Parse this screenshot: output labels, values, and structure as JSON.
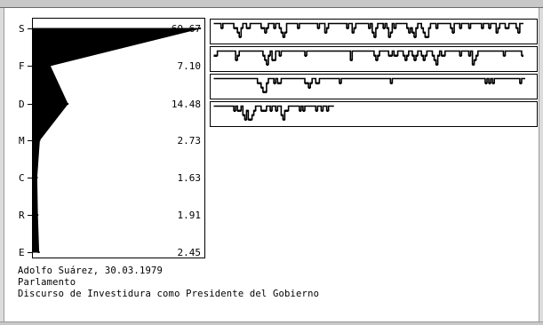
{
  "caption": {
    "speaker_date": "Adolfo Suárez, 30.03.1979",
    "venue": "Parlamento",
    "title": "Discurso de Investidura como Presidente del Gobierno"
  },
  "colors": {
    "profile_fill": "#000000",
    "frame": "#000000",
    "background": "#ffffff",
    "window_chrome": "#c8c8c8"
  },
  "chart_data": [
    {
      "type": "area",
      "orientation": "horizontal",
      "categories": [
        "S",
        "F",
        "D",
        "M",
        "C",
        "R",
        "E"
      ],
      "values": [
        69.67,
        7.1,
        14.48,
        2.73,
        1.63,
        1.91,
        2.45
      ],
      "value_labels": [
        "69.67",
        "7.10",
        "14.48",
        "2.73",
        "1.63",
        "1.91",
        "2.45"
      ],
      "xlim": [
        0,
        70
      ],
      "grid": false
    },
    {
      "type": "line",
      "description_of_tracks": "step sequence tracks",
      "tracks": [
        {
          "levels": [
            3,
            3,
            3,
            3,
            2,
            3,
            3,
            3,
            3,
            3,
            3,
            2,
            2,
            1,
            0,
            2,
            3,
            3,
            2,
            2,
            3,
            3,
            3,
            3,
            3,
            3,
            2,
            2,
            1,
            2,
            3,
            3,
            3,
            2,
            3,
            3,
            2,
            1,
            0,
            1,
            3,
            3,
            3,
            3,
            3,
            3,
            2,
            3,
            3,
            3,
            3,
            3,
            3,
            3,
            3,
            3,
            3,
            2,
            3,
            3,
            3,
            1,
            2,
            3,
            3,
            3,
            3,
            3,
            3,
            3,
            3,
            3,
            3,
            2,
            3,
            3,
            1,
            2,
            3,
            3,
            3,
            3,
            3,
            3,
            3,
            2,
            3,
            1,
            0,
            2,
            3,
            3,
            3,
            2,
            3,
            2,
            0,
            1,
            3,
            2,
            3,
            3,
            3,
            3,
            3,
            3,
            2,
            1,
            2,
            1,
            0,
            2,
            3,
            3,
            2,
            1,
            0,
            0,
            2,
            3,
            3,
            3,
            2,
            3,
            3,
            3,
            3,
            3,
            3,
            3,
            2,
            1,
            3,
            3,
            3,
            2,
            3,
            3,
            3,
            3,
            2,
            3,
            3,
            3,
            3,
            3,
            3,
            2,
            3,
            3,
            3,
            2,
            3,
            3,
            3,
            1,
            2,
            3,
            3,
            3,
            2,
            2,
            3,
            3,
            3,
            3,
            2,
            1,
            3,
            3
          ]
        },
        {
          "levels": [
            2,
            2,
            3,
            3,
            3,
            3,
            3,
            3,
            3,
            3,
            3,
            3,
            1,
            2,
            3,
            3,
            3,
            3,
            3,
            3,
            3,
            3,
            3,
            3,
            3,
            3,
            3,
            2,
            1,
            0,
            2,
            3,
            1,
            1,
            3,
            3,
            2,
            3,
            3,
            3,
            3,
            3,
            3,
            3,
            3,
            3,
            3,
            3,
            3,
            3,
            2,
            3,
            3,
            3,
            3,
            3,
            3,
            3,
            3,
            3,
            3,
            3,
            3,
            3,
            3,
            3,
            3,
            3,
            3,
            3,
            3,
            3,
            3,
            3,
            3,
            1,
            3,
            3,
            3,
            3,
            3,
            3,
            3,
            3,
            3,
            3,
            3,
            3,
            2,
            1,
            2,
            3,
            3,
            3,
            3,
            3,
            2,
            2,
            3,
            2,
            2,
            3,
            3,
            3,
            2,
            1,
            2,
            3,
            3,
            2,
            1,
            2,
            3,
            3,
            2,
            1,
            2,
            3,
            3,
            3,
            2,
            1,
            0,
            2,
            3,
            2,
            2,
            3,
            3,
            3,
            3,
            3,
            3,
            3,
            3,
            2,
            3,
            3,
            3,
            3,
            2,
            3,
            0,
            1,
            2,
            3,
            3,
            3,
            3,
            3,
            3,
            3,
            3,
            3,
            3,
            3,
            3,
            3,
            3,
            2,
            3,
            3,
            3,
            3,
            3,
            3,
            3,
            3,
            3,
            2
          ]
        },
        {
          "levels": [
            3,
            3,
            3,
            3,
            3,
            3,
            3,
            3,
            3,
            3,
            3,
            3,
            3,
            3,
            3,
            3,
            3,
            3,
            3,
            3,
            3,
            3,
            3,
            3,
            2,
            2,
            1,
            0,
            0,
            2,
            3,
            3,
            3,
            2,
            3,
            2,
            2,
            3,
            3,
            3,
            3,
            3,
            3,
            3,
            3,
            3,
            3,
            3,
            3,
            3,
            2,
            2,
            1,
            2,
            3,
            3,
            2,
            2,
            3,
            3,
            3,
            3,
            3,
            3,
            3,
            3,
            3,
            3,
            3,
            2,
            3,
            3,
            3,
            3,
            3,
            3,
            3,
            3,
            3,
            3,
            3,
            3,
            3,
            3,
            3,
            3,
            3,
            3,
            3,
            3,
            3,
            3,
            3,
            3,
            3,
            3,
            3,
            2,
            3,
            3,
            3,
            3,
            3,
            3,
            3,
            3,
            3,
            3,
            3,
            3,
            3,
            3,
            3,
            3,
            3,
            3,
            3,
            3,
            3,
            3,
            3,
            3,
            3,
            3,
            3,
            3,
            3,
            3,
            3,
            3,
            3,
            3,
            3,
            3,
            3,
            3,
            3,
            3,
            3,
            3,
            3,
            3,
            3,
            3,
            3,
            3,
            3,
            3,
            3,
            2,
            3,
            2,
            3,
            2,
            3,
            3,
            3,
            3,
            3,
            3,
            3,
            3,
            3,
            3,
            3,
            3,
            3,
            3,
            2,
            3,
            3
          ]
        },
        {
          "levels": [
            3,
            3,
            3,
            3,
            3,
            3,
            3,
            3,
            3,
            3,
            3,
            2,
            3,
            2,
            2,
            3,
            1,
            0,
            2,
            0,
            0,
            1,
            2,
            3,
            3,
            3,
            2,
            2,
            2,
            3,
            3,
            2,
            3,
            3,
            2,
            3,
            3,
            1,
            0,
            2,
            2,
            3,
            3,
            3,
            3,
            3,
            3,
            2,
            3,
            2,
            3,
            3,
            3,
            3,
            3,
            3,
            2,
            3,
            3,
            2,
            3,
            3,
            2,
            3,
            3,
            3
          ]
        }
      ]
    }
  ]
}
